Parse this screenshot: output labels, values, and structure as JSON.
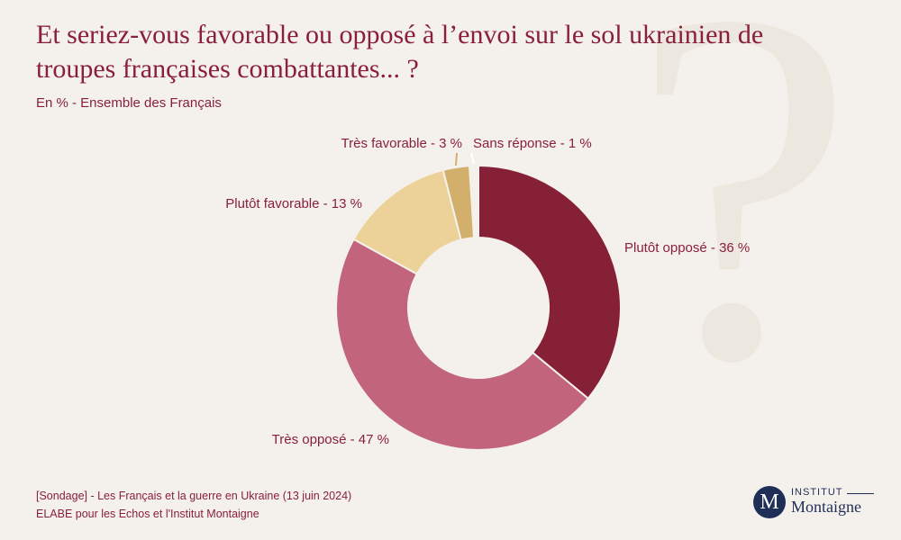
{
  "title": "Et seriez-vous favorable ou opposé à l’envoi sur le sol ukrainien de troupes françaises combattantes... ?",
  "subtitle": "En % - Ensemble des Français",
  "background_mark": "?",
  "chart_data": {
    "type": "pie",
    "donut": true,
    "title": "Et seriez-vous favorable ou opposé à l’envoi sur le sol ukrainien de troupes françaises combattantes... ?",
    "unit": "%",
    "slices": [
      {
        "label": "Plutôt opposé - 36 %",
        "name": "Plutôt opposé",
        "value": 36,
        "color": "#862037"
      },
      {
        "label": "Très opposé - 47 %",
        "name": "Très opposé",
        "value": 47,
        "color": "#c2647b"
      },
      {
        "label": "Plutôt favorable - 13 %",
        "name": "Plutôt favorable",
        "value": 13,
        "color": "#ecd199"
      },
      {
        "label": "Très favorable - 3 %",
        "name": "Très favorable",
        "value": 3,
        "color": "#d2b06c"
      },
      {
        "label": "Sans réponse - 1 %",
        "name": "Sans réponse",
        "value": 1,
        "color": "#f5f1ea"
      }
    ]
  },
  "footer": {
    "line1": "[Sondage] - Les Français et la guerre en Ukraine (13 juin 2024)",
    "line2": "ELABE pour les Echos et l'Institut Montaigne"
  },
  "logo": {
    "initial": "M",
    "top": "INSTITUT",
    "name": "Montaigne"
  },
  "colors": {
    "text": "#8a1f3b",
    "background": "#f4f1ec",
    "logo": "#1f2e57"
  }
}
